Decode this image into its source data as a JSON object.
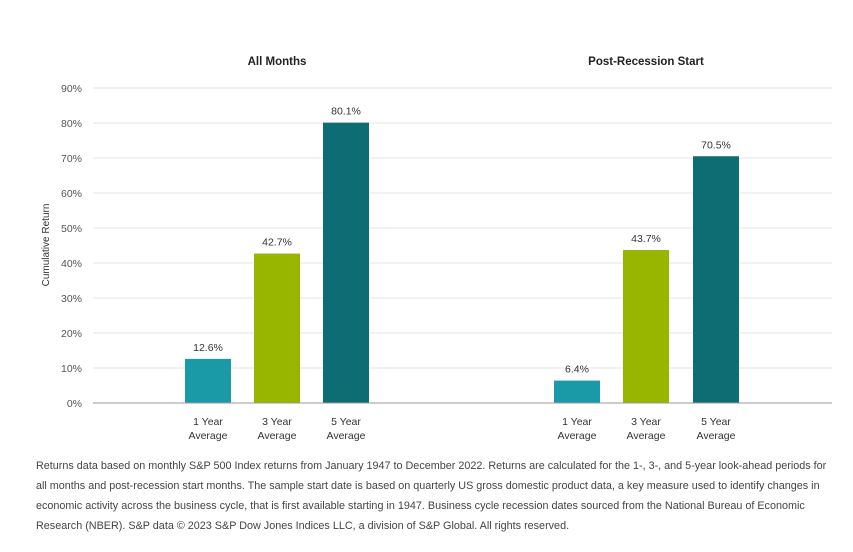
{
  "chart_data": {
    "type": "bar",
    "ylabel": "Cumulative Return",
    "ylim": [
      0,
      90
    ],
    "yticks": [
      0,
      10,
      20,
      30,
      40,
      50,
      60,
      70,
      80,
      90
    ],
    "ytick_labels": [
      "0%",
      "10%",
      "20%",
      "30%",
      "40%",
      "50%",
      "60%",
      "70%",
      "80%",
      "90%"
    ],
    "grid": true,
    "panels": [
      {
        "title": "All Months",
        "categories": [
          [
            "1 Year",
            "Average"
          ],
          [
            "3 Year",
            "Average"
          ],
          [
            "5 Year",
            "Average"
          ]
        ],
        "values": [
          12.6,
          42.7,
          80.1
        ],
        "value_labels": [
          "12.6%",
          "42.7%",
          "80.1%"
        ],
        "colors": [
          "#1a9aa6",
          "#98b500",
          "#0e6d72"
        ]
      },
      {
        "title": "Post-Recession Start",
        "categories": [
          [
            "1 Year",
            "Average"
          ],
          [
            "3 Year",
            "Average"
          ],
          [
            "5 Year",
            "Average"
          ]
        ],
        "values": [
          6.4,
          43.7,
          70.5
        ],
        "value_labels": [
          "6.4%",
          "43.7%",
          "70.5%"
        ],
        "colors": [
          "#1a9aa6",
          "#98b500",
          "#0e6d72"
        ]
      }
    ]
  },
  "footnote": "Returns data based on monthly S&P 500 Index returns from January 1947 to December 2022. Returns are calculated for the 1-, 3-, and 5-year look-ahead periods for all months and post-recession start months. The sample start date is based on quarterly US gross domestic product data, a key measure used to identify changes in economic activity across the business cycle, that is first available starting in 1947. Business cycle recession dates sourced from the National Bureau of Economic Research (NBER). S&P data © 2023 S&P Dow Jones Indices LLC, a division of S&P Global. All rights reserved."
}
